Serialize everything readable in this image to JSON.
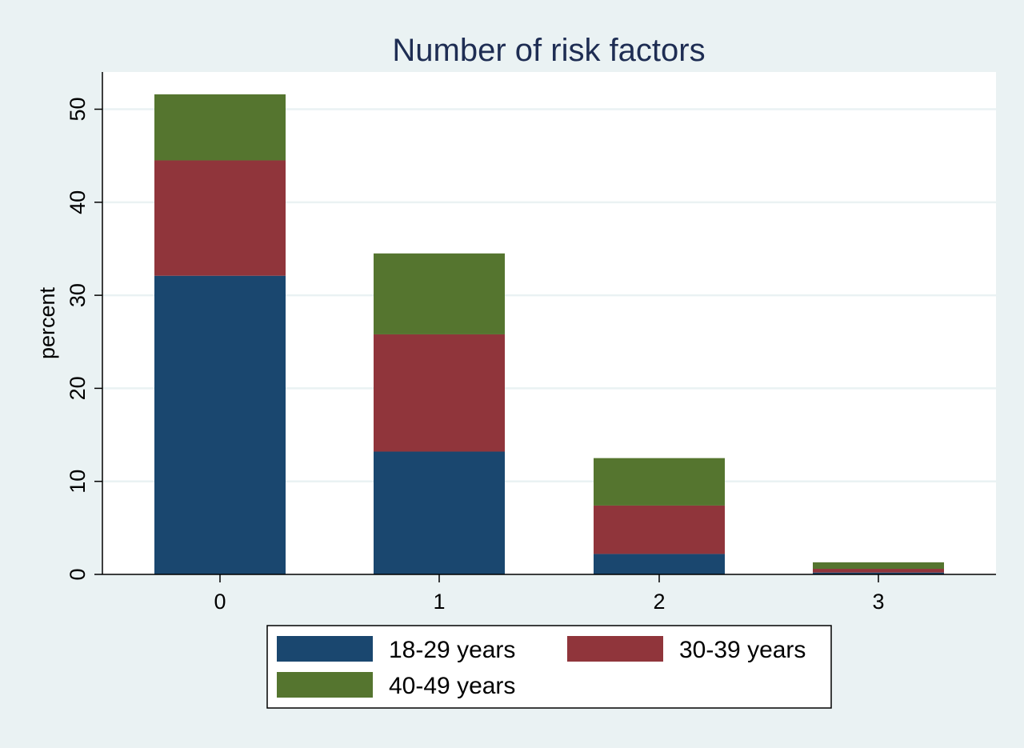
{
  "chart_data": {
    "type": "bar",
    "stacked": true,
    "title": "Number of risk factors",
    "xlabel": "",
    "ylabel": "percent",
    "categories": [
      "0",
      "1",
      "2",
      "3"
    ],
    "series": [
      {
        "name": "18-29 years",
        "color": "#1a476f",
        "values": [
          32.1,
          13.2,
          2.2,
          0.2
        ]
      },
      {
        "name": "30-39 years",
        "color": "#90353b",
        "values": [
          12.4,
          12.6,
          5.2,
          0.4
        ]
      },
      {
        "name": "40-49 years",
        "color": "#55752f",
        "values": [
          7.1,
          8.7,
          5.1,
          0.7
        ]
      }
    ],
    "yticks": [
      0,
      10,
      20,
      30,
      40,
      50
    ],
    "ylim": [
      0,
      54
    ],
    "grid": true,
    "legend_position": "bottom"
  },
  "colors": {
    "page_background": "#eaf2f3",
    "plot_background": "#ffffff",
    "gridline": "#eaf2f3",
    "axis": "#000000",
    "title": "#1e2d53"
  }
}
